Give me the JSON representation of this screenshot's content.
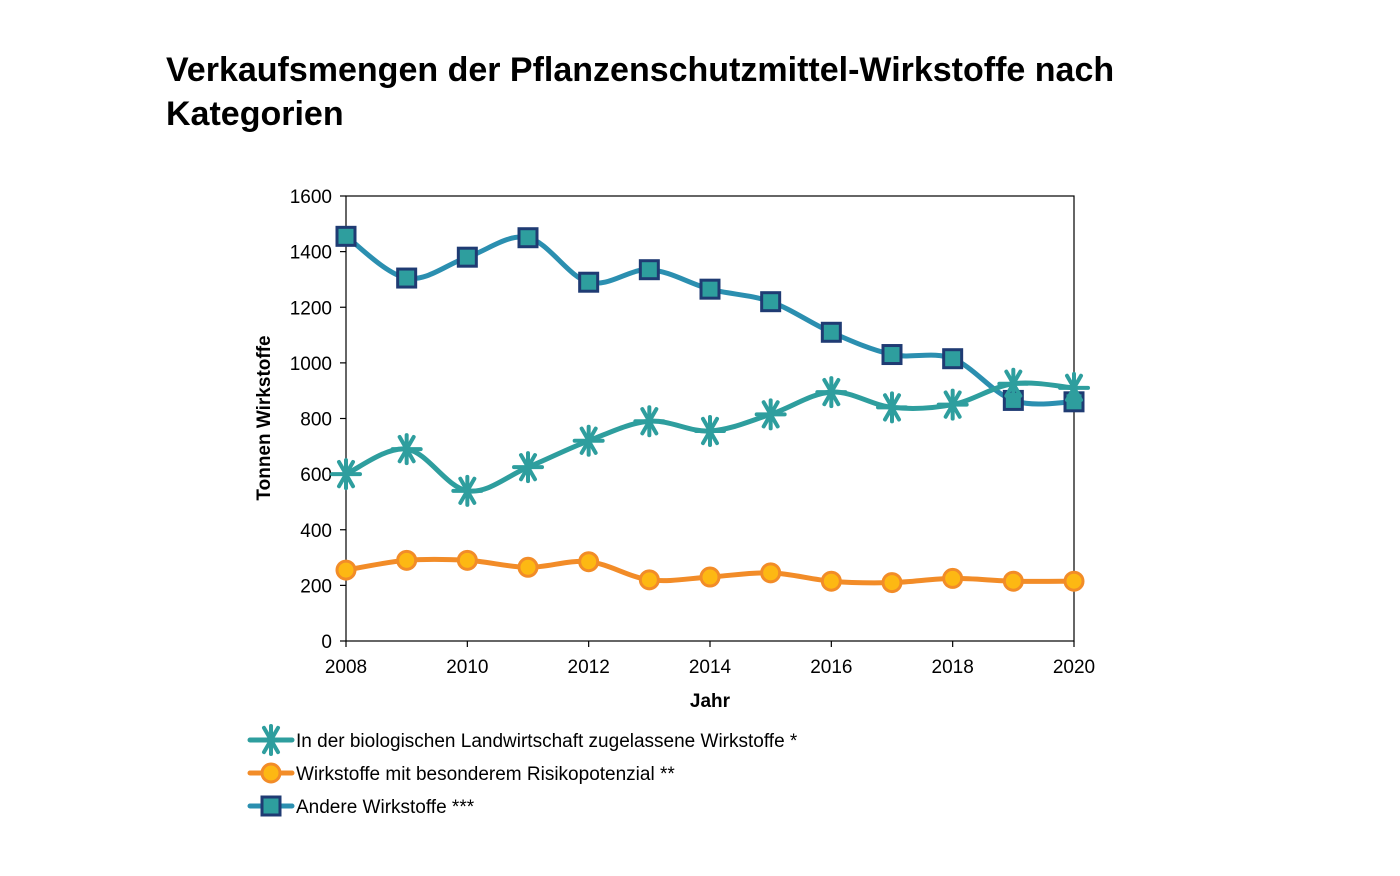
{
  "chart_data": {
    "type": "line",
    "title": "Verkaufsmengen der Pflanzenschutzmittel-Wirkstoffe nach Kategorien",
    "xlabel": "Jahr",
    "ylabel": "Tonnen Wirkstoffe",
    "xlim": [
      2008,
      2020
    ],
    "ylim": [
      0,
      1600
    ],
    "x_ticks": [
      "2008",
      "2010",
      "2012",
      "2014",
      "2016",
      "2018",
      "2020"
    ],
    "y_ticks": [
      "0",
      "200",
      "400",
      "600",
      "800",
      "1000",
      "1200",
      "1400",
      "1600"
    ],
    "grid": false,
    "legend_position": "bottom",
    "x": [
      2008,
      2009,
      2010,
      2011,
      2012,
      2013,
      2014,
      2015,
      2016,
      2017,
      2018,
      2019,
      2020
    ],
    "series": [
      {
        "name": "In der biologischen Landwirtschaft zugelassene Wirkstoffe *",
        "marker": "asterisk",
        "color": "#2E9E9E",
        "values": [
          600,
          690,
          540,
          625,
          720,
          790,
          755,
          815,
          895,
          840,
          850,
          925,
          910
        ]
      },
      {
        "name": "Wirkstoffe mit besonderem Risikopotenzial **",
        "marker": "circle",
        "color": "#F28C28",
        "marker_fill": "#FDB813",
        "values": [
          255,
          290,
          290,
          265,
          285,
          220,
          230,
          245,
          215,
          210,
          225,
          215,
          215
        ]
      },
      {
        "name": "Andere Wirkstoffe ***",
        "marker": "square",
        "color": "#2B8FB0",
        "marker_fill": "#2E9E9E",
        "marker_stroke": "#1F3B73",
        "values": [
          1455,
          1305,
          1380,
          1450,
          1290,
          1335,
          1265,
          1220,
          1110,
          1030,
          1015,
          865,
          860
        ]
      }
    ]
  }
}
